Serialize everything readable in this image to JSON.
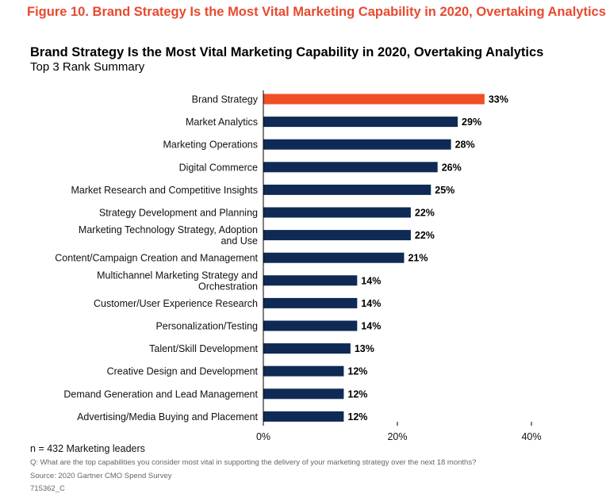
{
  "figure_caption": "Figure 10. Brand Strategy Is the Most Vital Marketing Capability in 2020, Overtaking Analytics",
  "colors": {
    "highlight": "#f04e23",
    "bar": "#0f2a55",
    "caption": "#e8492f"
  },
  "chart_data": {
    "type": "bar",
    "orientation": "horizontal",
    "title": "Brand Strategy Is the Most Vital Marketing Capability in 2020, Overtaking Analytics",
    "subtitle": "Top 3 Rank Summary",
    "categories": [
      [
        "Brand Strategy"
      ],
      [
        "Market Analytics"
      ],
      [
        "Marketing Operations"
      ],
      [
        "Digital Commerce"
      ],
      [
        "Market Research and Competitive Insights"
      ],
      [
        "Strategy Development and Planning"
      ],
      [
        "Marketing Technology Strategy, Adoption",
        "and Use"
      ],
      [
        "Content/Campaign Creation and Management"
      ],
      [
        "Multichannel Marketing Strategy and",
        "Orchestration"
      ],
      [
        "Customer/User Experience Research"
      ],
      [
        "Personalization/Testing"
      ],
      [
        "Talent/Skill Development"
      ],
      [
        "Creative Design and Development"
      ],
      [
        "Demand Generation and Lead Management"
      ],
      [
        "Advertising/Media Buying and Placement"
      ]
    ],
    "values": [
      33,
      29,
      28,
      26,
      25,
      22,
      22,
      21,
      14,
      14,
      14,
      13,
      12,
      12,
      12
    ],
    "value_labels": [
      "33%",
      "29%",
      "28%",
      "26%",
      "25%",
      "22%",
      "22%",
      "21%",
      "14%",
      "14%",
      "14%",
      "13%",
      "12%",
      "12%",
      "12%"
    ],
    "highlight_index": 0,
    "xlim": [
      0,
      40
    ],
    "xticks": [
      0,
      20,
      40
    ],
    "xtick_labels": [
      "0%",
      "20%",
      "40%"
    ],
    "grid": false
  },
  "notes": {
    "sample": "n = 432 Marketing leaders",
    "question": "Q: What are the top capabilities you consider most vital in supporting the delivery of your marketing strategy over the next 18 months?",
    "source": "Source: 2020 Gartner CMO Spend Survey",
    "id": "715362_C"
  }
}
